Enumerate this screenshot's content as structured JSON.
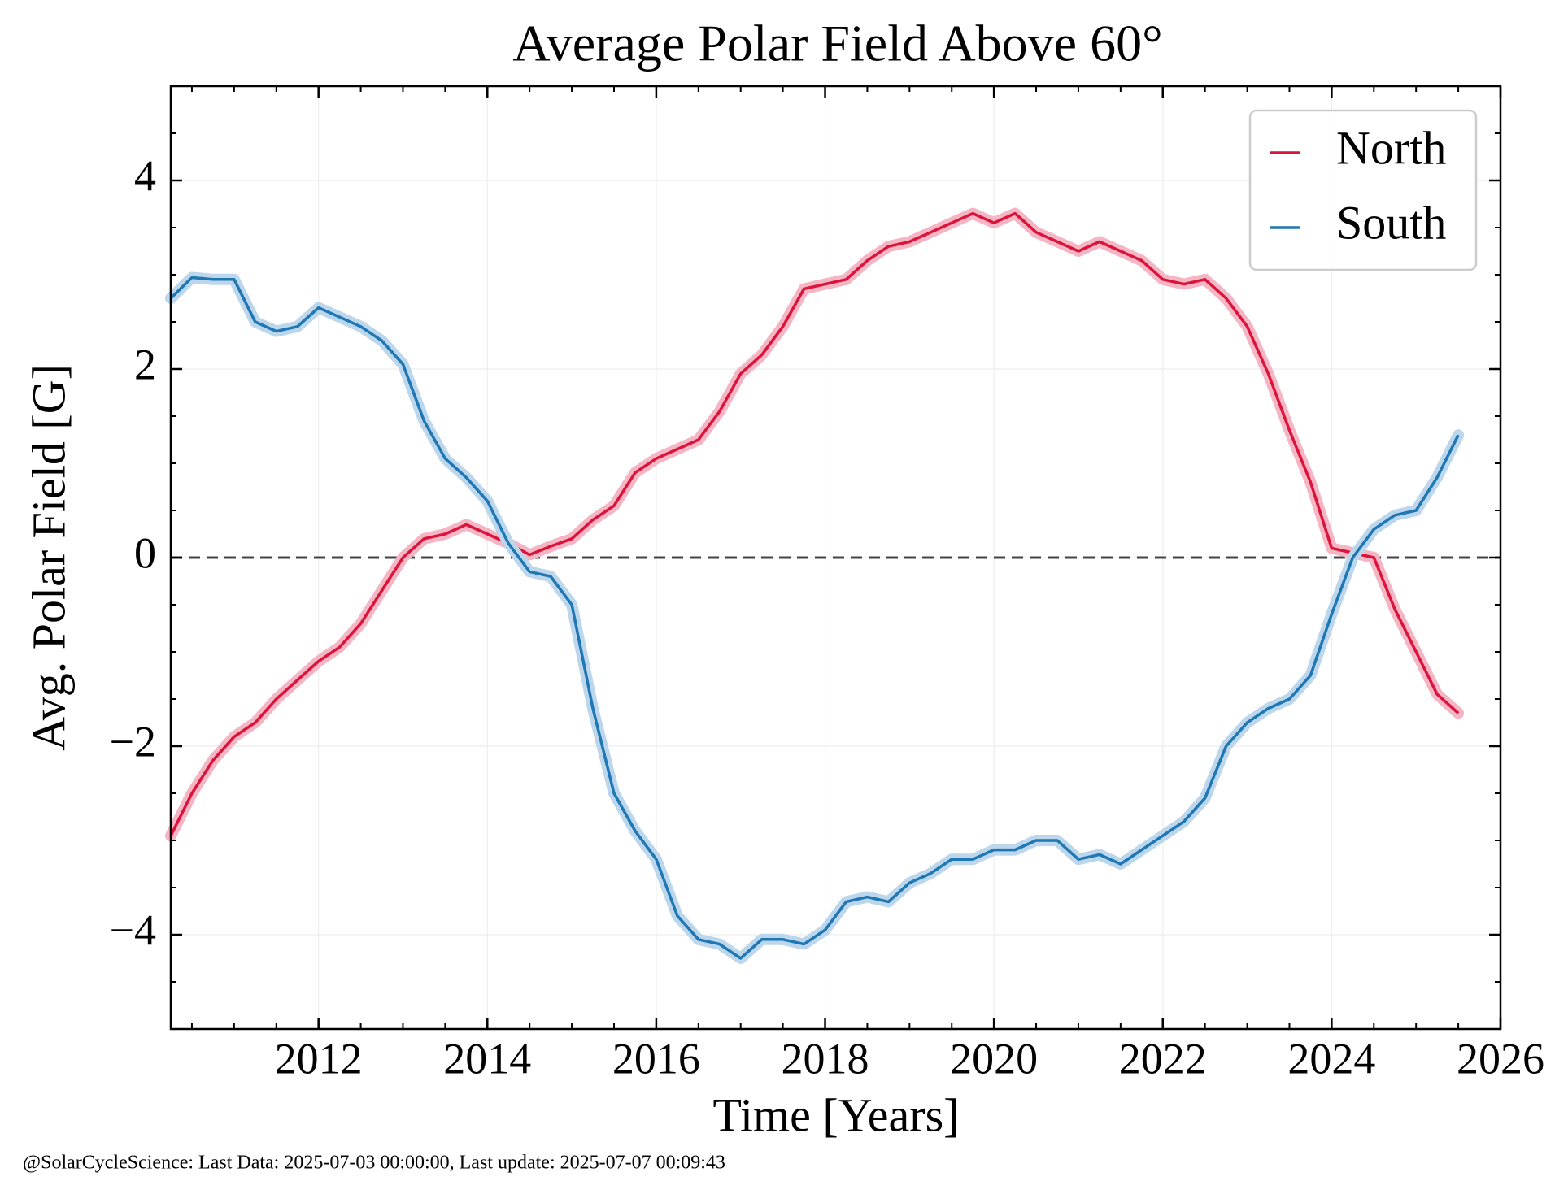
{
  "chart_data": {
    "type": "line",
    "title": "Average Polar Field Above 60°",
    "x_label": "Time [Years]",
    "y_label": "Avg. Polar Field [G]",
    "footer": "@SolarCycleScience: Last Data: 2025-07-03 00:00:00, Last update: 2025-07-07 00:09:43",
    "x": [
      2010.25,
      2010.5,
      2010.75,
      2011,
      2011.25,
      2011.5,
      2011.75,
      2012,
      2012.25,
      2012.5,
      2012.75,
      2013,
      2013.25,
      2013.5,
      2013.75,
      2014,
      2014.25,
      2014.5,
      2014.75,
      2015,
      2015.25,
      2015.5,
      2015.75,
      2016,
      2016.25,
      2016.5,
      2016.75,
      2017,
      2017.25,
      2017.5,
      2017.75,
      2018,
      2018.25,
      2018.5,
      2018.75,
      2019,
      2019.25,
      2019.5,
      2019.75,
      2020,
      2020.25,
      2020.5,
      2020.75,
      2021,
      2021.25,
      2021.5,
      2021.75,
      2022,
      2022.25,
      2022.5,
      2022.75,
      2023,
      2023.25,
      2023.5,
      2023.75,
      2024,
      2024.25,
      2024.5,
      2024.75,
      2025,
      2025.25,
      2025.5
    ],
    "series": [
      {
        "name": "North",
        "color": "#dc143c",
        "band_color": "#f4b6c4",
        "values": [
          -2.95,
          -2.5,
          -2.15,
          -1.9,
          -1.75,
          -1.5,
          -1.3,
          -1.1,
          -0.95,
          -0.7,
          -0.35,
          0.0,
          0.2,
          0.25,
          0.35,
          0.25,
          0.15,
          0.03,
          0.12,
          0.2,
          0.4,
          0.55,
          0.9,
          1.05,
          1.15,
          1.25,
          1.55,
          1.95,
          2.15,
          2.45,
          2.85,
          2.9,
          2.95,
          3.15,
          3.3,
          3.35,
          3.45,
          3.55,
          3.65,
          3.55,
          3.65,
          3.45,
          3.35,
          3.25,
          3.35,
          3.25,
          3.15,
          2.95,
          2.9,
          2.95,
          2.75,
          2.45,
          1.95,
          1.35,
          0.8,
          0.1,
          0.05,
          0.0,
          -0.55,
          -1.0,
          -1.45,
          -1.65
        ]
      },
      {
        "name": "South",
        "color": "#1f77b4",
        "band_color": "#bcd6ec",
        "values": [
          2.75,
          2.97,
          2.95,
          2.95,
          2.5,
          2.4,
          2.45,
          2.65,
          2.55,
          2.45,
          2.3,
          2.05,
          1.45,
          1.05,
          0.85,
          0.6,
          0.15,
          -0.15,
          -0.2,
          -0.5,
          -1.6,
          -2.5,
          -2.9,
          -3.2,
          -3.8,
          -4.05,
          -4.1,
          -4.25,
          -4.05,
          -4.05,
          -4.1,
          -3.95,
          -3.65,
          -3.6,
          -3.65,
          -3.45,
          -3.35,
          -3.2,
          -3.2,
          -3.1,
          -3.1,
          -3.0,
          -3.0,
          -3.2,
          -3.15,
          -3.25,
          -3.1,
          -2.95,
          -2.8,
          -2.55,
          -2.0,
          -1.75,
          -1.6,
          -1.5,
          -1.25,
          -0.6,
          0.0,
          0.3,
          0.45,
          0.5,
          0.85,
          1.3
        ]
      }
    ],
    "xlim": [
      2010.25,
      2026
    ],
    "xticks": [
      2012,
      2014,
      2016,
      2018,
      2020,
      2022,
      2024,
      2026
    ],
    "ylim": [
      -5,
      5
    ],
    "yticks": [
      {
        "value": -4,
        "label": "−4"
      },
      {
        "value": -2,
        "label": "−2"
      },
      0,
      2,
      4
    ],
    "grid": true,
    "legend": "upper right"
  }
}
